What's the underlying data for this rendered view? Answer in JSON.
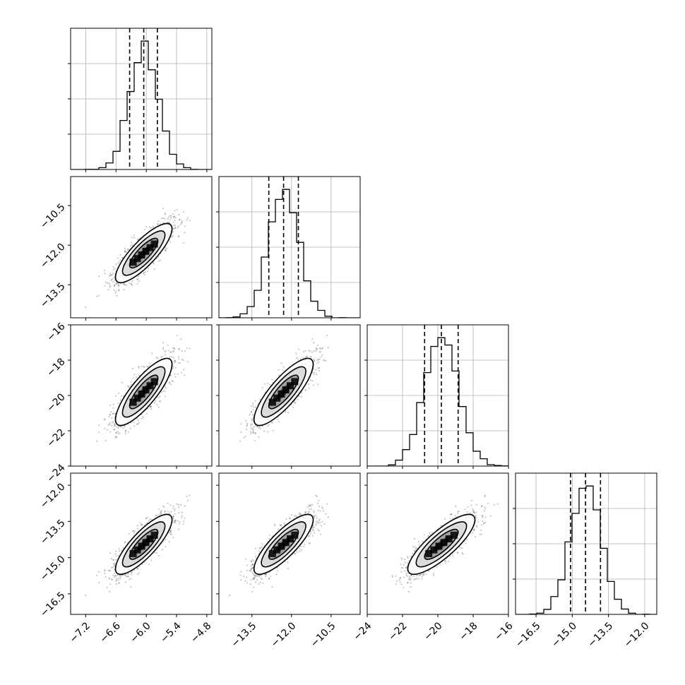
{
  "chart_data": {
    "type": "corner",
    "parameters": 4,
    "ranges": [
      [
        -7.5,
        -4.7
      ],
      [
        -14.75,
        -9.4
      ],
      [
        -24,
        -16
      ],
      [
        -17.35,
        -11.5
      ]
    ],
    "ticks": [
      [
        {
          "v": -7.2,
          "label": "−7.2"
        },
        {
          "v": -6.6,
          "label": "−6.6"
        },
        {
          "v": -6.0,
          "label": "−6.0"
        },
        {
          "v": -5.4,
          "label": "−5.4"
        },
        {
          "v": -4.8,
          "label": "−4.8"
        }
      ],
      [
        {
          "v": -13.5,
          "label": "−13.5"
        },
        {
          "v": -12.0,
          "label": "−12.0"
        },
        {
          "v": -10.5,
          "label": "−10.5"
        }
      ],
      [
        {
          "v": -24,
          "label": "−24"
        },
        {
          "v": -22,
          "label": "−22"
        },
        {
          "v": -20,
          "label": "−20"
        },
        {
          "v": -18,
          "label": "−18"
        },
        {
          "v": -16,
          "label": "−16"
        }
      ],
      [
        {
          "v": -16.5,
          "label": "−16.5"
        },
        {
          "v": -15.0,
          "label": "−15.0"
        },
        {
          "v": -13.5,
          "label": "−13.5"
        },
        {
          "v": -12.0,
          "label": "−12.0"
        }
      ]
    ],
    "means": [
      -6.05,
      -12.3,
      -19.8,
      -14.45
    ],
    "sigmas": [
      0.28,
      0.56,
      0.95,
      0.62
    ],
    "quantiles": [
      [
        -6.33,
        -6.05,
        -5.78
      ],
      [
        -12.86,
        -12.3,
        -11.74
      ],
      [
        -20.75,
        -19.8,
        -18.85
      ],
      [
        -15.07,
        -14.45,
        -13.83
      ]
    ],
    "correlation": 0.82,
    "histogram_bins": 20,
    "histogram_color": "#000000",
    "quantile_line_style": "dashed",
    "contour_levels_sigma": [
      0.5,
      1.0,
      1.5,
      2.0
    ],
    "density_color": "#000000",
    "grid": true
  }
}
